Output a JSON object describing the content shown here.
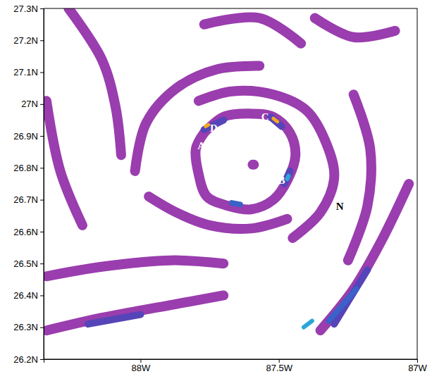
{
  "chart_data": {
    "type": "contour",
    "xlim": [
      -88.35,
      -87
    ],
    "ylim": [
      26.2,
      27.3
    ],
    "xticks": [
      {
        "value": -88,
        "label": "88W"
      },
      {
        "value": -87.5,
        "label": "87.5W"
      },
      {
        "value": -87,
        "label": "87W"
      }
    ],
    "yticks": [
      {
        "value": 26.2,
        "label": "26.2N"
      },
      {
        "value": 26.3,
        "label": "26.3N"
      },
      {
        "value": 26.4,
        "label": "26.4N"
      },
      {
        "value": 26.5,
        "label": "26.5N"
      },
      {
        "value": 26.6,
        "label": "26.6N"
      },
      {
        "value": 26.7,
        "label": "26.7N"
      },
      {
        "value": 26.8,
        "label": "26.8N"
      },
      {
        "value": 26.9,
        "label": "26.9N"
      },
      {
        "value": 27.0,
        "label": "27N"
      },
      {
        "value": 27.1,
        "label": "27.1N"
      },
      {
        "value": 27.2,
        "label": "27.2N"
      },
      {
        "value": 27.3,
        "label": "27.3N"
      }
    ],
    "colors": [
      "#9a3dae",
      "#5545b8",
      "#3a62c8",
      "#2aa6d8",
      "#f5a623"
    ],
    "bands": [
      {
        "level": 1,
        "x": [
          -87.77,
          -87.7,
          -87.6,
          -87.52,
          -87.46,
          -87.44,
          -87.47,
          -87.52,
          -87.6,
          -87.68,
          -87.76,
          -87.79,
          -87.8,
          -87.77
        ],
        "y": [
          26.91,
          26.96,
          26.97,
          26.96,
          26.91,
          26.84,
          26.76,
          26.7,
          26.67,
          26.68,
          26.71,
          26.78,
          26.86,
          26.91
        ]
      },
      {
        "level": 1,
        "x": [
          -87.595,
          -87.59
        ],
        "y": [
          26.81,
          26.81
        ]
      },
      {
        "level": 1,
        "x": [
          -87.79,
          -87.67,
          -87.52,
          -87.4,
          -87.33,
          -87.3,
          -87.35,
          -87.45
        ],
        "y": [
          27.01,
          27.04,
          27.03,
          26.98,
          26.88,
          26.77,
          26.66,
          26.58
        ]
      },
      {
        "level": 1,
        "x": [
          -87.47,
          -87.6,
          -87.75,
          -87.87,
          -87.97
        ],
        "y": [
          26.64,
          26.61,
          26.62,
          26.66,
          26.71
        ]
      },
      {
        "level": 1,
        "x": [
          -88.02,
          -87.98,
          -87.87,
          -87.72,
          -87.57
        ],
        "y": [
          26.79,
          26.94,
          27.05,
          27.11,
          27.12
        ]
      },
      {
        "level": 1,
        "x": [
          -87.23,
          -87.17,
          -87.18,
          -87.25
        ],
        "y": [
          27.03,
          26.86,
          26.68,
          26.51
        ]
      },
      {
        "level": 1,
        "x": [
          -87.03,
          -87.13,
          -87.23,
          -87.35
        ],
        "y": [
          26.75,
          26.57,
          26.42,
          26.29
        ]
      },
      {
        "level": 1,
        "x": [
          -88.34,
          -88.14,
          -87.89,
          -87.7
        ],
        "y": [
          26.46,
          26.49,
          26.51,
          26.5
        ]
      },
      {
        "level": 1,
        "x": [
          -88.34,
          -88.14,
          -87.89,
          -87.7
        ],
        "y": [
          26.29,
          26.33,
          26.37,
          26.4
        ]
      },
      {
        "level": 1,
        "x": [
          -88.26,
          -88.14,
          -88.09,
          -88.07
        ],
        "y": [
          27.3,
          27.14,
          26.99,
          26.84
        ]
      },
      {
        "level": 1,
        "x": [
          -88.34,
          -88.29,
          -88.21
        ],
        "y": [
          27.01,
          26.79,
          26.62
        ]
      },
      {
        "level": 1,
        "x": [
          -87.37,
          -87.23,
          -87.08
        ],
        "y": [
          27.27,
          27.21,
          27.23
        ]
      },
      {
        "level": 1,
        "x": [
          -87.77,
          -87.57,
          -87.42
        ],
        "y": [
          27.25,
          27.27,
          27.19
        ]
      },
      {
        "level": 2,
        "x": [
          -87.18,
          -87.3
        ],
        "y": [
          26.48,
          26.31
        ]
      },
      {
        "level": 3,
        "x": [
          -87.22,
          -87.32
        ],
        "y": [
          26.42,
          26.32
        ]
      },
      {
        "level": 4,
        "x": [
          -87.38,
          -87.41
        ],
        "y": [
          26.32,
          26.3
        ]
      },
      {
        "level": 2,
        "x": [
          -88.19,
          -88.0
        ],
        "y": [
          26.31,
          26.34
        ]
      },
      {
        "level": 2,
        "x": [
          -87.77,
          -87.7
        ],
        "y": [
          26.92,
          26.95
        ]
      },
      {
        "level": 5,
        "x": [
          -87.765,
          -87.755
        ],
        "y": [
          26.93,
          26.935
        ]
      },
      {
        "level": 2,
        "x": [
          -87.53,
          -87.49
        ],
        "y": [
          26.96,
          26.93
        ]
      },
      {
        "level": 5,
        "x": [
          -87.52,
          -87.505
        ],
        "y": [
          26.955,
          26.945
        ]
      },
      {
        "level": 2,
        "x": [
          -87.46,
          -87.48
        ],
        "y": [
          26.79,
          26.75
        ]
      },
      {
        "level": 4,
        "x": [
          -87.465,
          -87.47
        ],
        "y": [
          26.775,
          26.765
        ]
      },
      {
        "level": 3,
        "x": [
          -87.67,
          -87.64
        ],
        "y": [
          26.69,
          26.685
        ]
      }
    ],
    "annotations": [
      {
        "text": "A",
        "x": -87.78,
        "y": 26.87,
        "color": "#ffffff"
      },
      {
        "text": "D",
        "x": -87.735,
        "y": 26.925,
        "color": "#ffffff"
      },
      {
        "text": "C",
        "x": -87.55,
        "y": 26.96,
        "color": "#ffffff"
      },
      {
        "text": "B",
        "x": -87.49,
        "y": 26.76,
        "color": "#ffffff"
      },
      {
        "text": "N",
        "x": -87.28,
        "y": 26.68,
        "color": "#000000"
      }
    ]
  }
}
